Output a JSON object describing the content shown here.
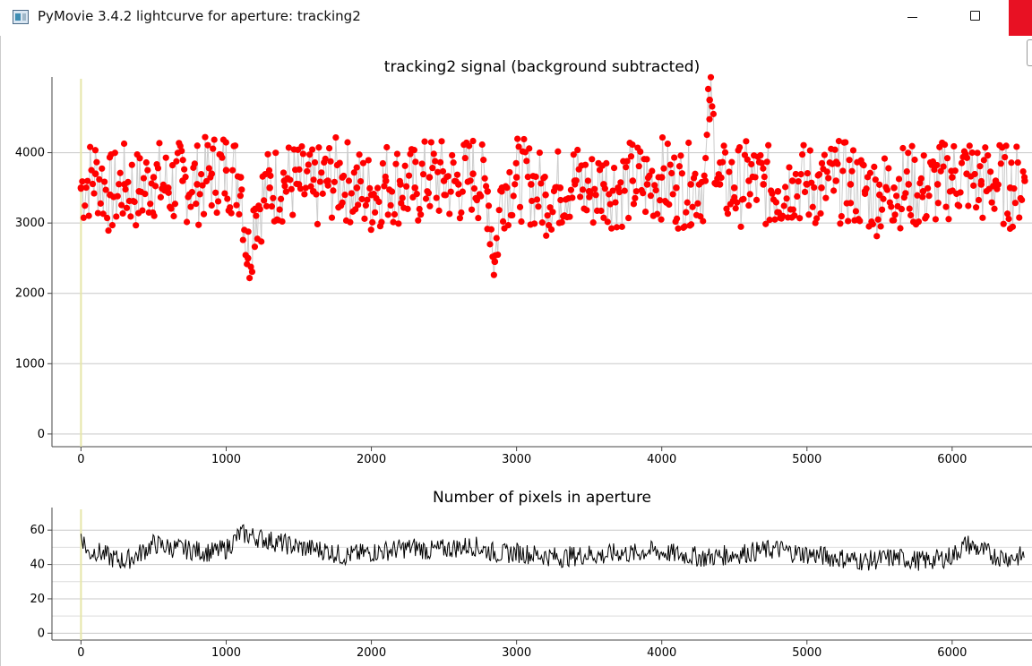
{
  "window": {
    "title": "PyMovie 3.4.2 lightcurve for aperture: tracking2",
    "minimize_icon": "minimize-icon",
    "maximize_icon": "maximize-icon",
    "close_icon": "close-icon"
  },
  "colors": {
    "signal_points": "#ff0000",
    "signal_lines": "#cccccc",
    "pixels_line": "#000000",
    "frame_marker": "#e6e6a8",
    "close_button": "#e81123"
  },
  "chart_data": [
    {
      "type": "scatter",
      "title": "tracking2 signal (background subtracted)",
      "xlabel": "",
      "ylabel": "",
      "xlim": [
        -200,
        6550
      ],
      "ylim": [
        -180,
        5000
      ],
      "x_ticks": [
        0,
        1000,
        2000,
        3000,
        4000,
        5000,
        6000
      ],
      "y_ticks": [
        0,
        1000,
        2000,
        3000,
        4000
      ],
      "grid": true,
      "marker_line_x": 0,
      "series": [
        {
          "x": [
            0,
            100,
            200,
            300,
            400,
            500,
            600,
            700,
            800,
            900,
            1000,
            1100,
            1150,
            1200,
            1300,
            1400,
            1500,
            1600,
            1700,
            1800,
            1900,
            2000,
            2100,
            2200,
            2300,
            2400,
            2500,
            2600,
            2700,
            2800,
            2850,
            2900,
            3000,
            3100,
            3200,
            3300,
            3400,
            3500,
            3600,
            3700,
            3800,
            3900,
            4000,
            4100,
            4200,
            4300,
            4330,
            4400,
            4500,
            4600,
            4700,
            4800,
            4900,
            5000,
            5100,
            5200,
            5300,
            5400,
            5500,
            5600,
            5700,
            5800,
            5900,
            6000,
            6100,
            6200,
            6300,
            6400,
            6500
          ],
          "values": [
            3500,
            3700,
            3400,
            3550,
            3450,
            3650,
            3500,
            3600,
            3550,
            3700,
            3750,
            3650,
            2500,
            3200,
            3500,
            3600,
            3550,
            3450,
            3600,
            3650,
            3500,
            3400,
            3600,
            3550,
            3500,
            3650,
            3600,
            3550,
            3700,
            3450,
            2450,
            3500,
            3650,
            3550,
            3400,
            3500,
            3600,
            3450,
            3550,
            3500,
            3600,
            3550,
            3650,
            3500,
            3550,
            3600,
            4750,
            3550,
            3500,
            3600,
            3550,
            3450,
            3600,
            3550,
            3500,
            3600,
            3550,
            3450,
            3400,
            3500,
            3550,
            3450,
            3550,
            3650,
            3700,
            3550,
            3600,
            3500,
            3600
          ]
        }
      ]
    },
    {
      "type": "line",
      "title": "Number of pixels in aperture",
      "xlabel": "",
      "ylabel": "",
      "xlim": [
        -200,
        6550
      ],
      "ylim": [
        -4,
        70
      ],
      "x_ticks": [
        0,
        1000,
        2000,
        3000,
        4000,
        5000,
        6000
      ],
      "y_ticks": [
        0,
        20,
        40,
        60
      ],
      "grid": true,
      "marker_line_x": 0,
      "series": [
        {
          "x": [
            0,
            50,
            100,
            200,
            300,
            400,
            500,
            600,
            700,
            800,
            900,
            1000,
            1100,
            1200,
            1300,
            1400,
            1500,
            1600,
            1700,
            1800,
            1900,
            2000,
            2100,
            2200,
            2300,
            2400,
            2500,
            2600,
            2700,
            2800,
            2900,
            3000,
            3100,
            3200,
            3300,
            3400,
            3500,
            3600,
            3700,
            3800,
            3900,
            4000,
            4100,
            4200,
            4300,
            4400,
            4500,
            4600,
            4700,
            4800,
            4900,
            5000,
            5100,
            5200,
            5300,
            5400,
            5500,
            5600,
            5700,
            5800,
            5900,
            6000,
            6100,
            6200,
            6300,
            6400,
            6500
          ],
          "values": [
            58,
            46,
            48,
            44,
            42,
            46,
            52,
            50,
            49,
            48,
            47,
            49,
            58,
            56,
            54,
            52,
            50,
            49,
            48,
            45,
            46,
            47,
            48,
            49,
            50,
            48,
            49,
            50,
            51,
            48,
            46,
            47,
            46,
            45,
            44,
            45,
            46,
            45,
            47,
            46,
            48,
            47,
            46,
            45,
            44,
            45,
            46,
            47,
            48,
            49,
            47,
            46,
            45,
            44,
            43,
            42,
            43,
            44,
            43,
            42,
            43,
            45,
            52,
            48,
            45,
            44,
            45
          ]
        }
      ]
    }
  ]
}
